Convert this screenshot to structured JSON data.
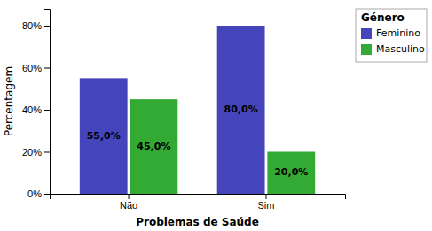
{
  "chart_data": {
    "type": "bar",
    "xlabel": "Problemas de Saúde",
    "ylabel": "Percentagem",
    "legend_title": "Género",
    "categories": [
      "Não",
      "Sim"
    ],
    "series": [
      {
        "name": "Feminino",
        "color": "#4444BB",
        "values": [
          55.0,
          80.0
        ],
        "value_labels": [
          "55,0%",
          "80,0%"
        ]
      },
      {
        "name": "Masculino",
        "color": "#33AA33",
        "values": [
          45.0,
          20.0
        ],
        "value_labels": [
          "45,0%",
          "20,0%"
        ]
      }
    ],
    "ylim": [
      0,
      88
    ],
    "yticks": [
      {
        "value": 0,
        "label": "0%"
      },
      {
        "value": 20,
        "label": "20%"
      },
      {
        "value": 40,
        "label": "40%"
      },
      {
        "value": 60,
        "label": "60%"
      },
      {
        "value": 80,
        "label": "80%"
      }
    ],
    "data_labels": true,
    "grid": false,
    "legend": "right"
  }
}
